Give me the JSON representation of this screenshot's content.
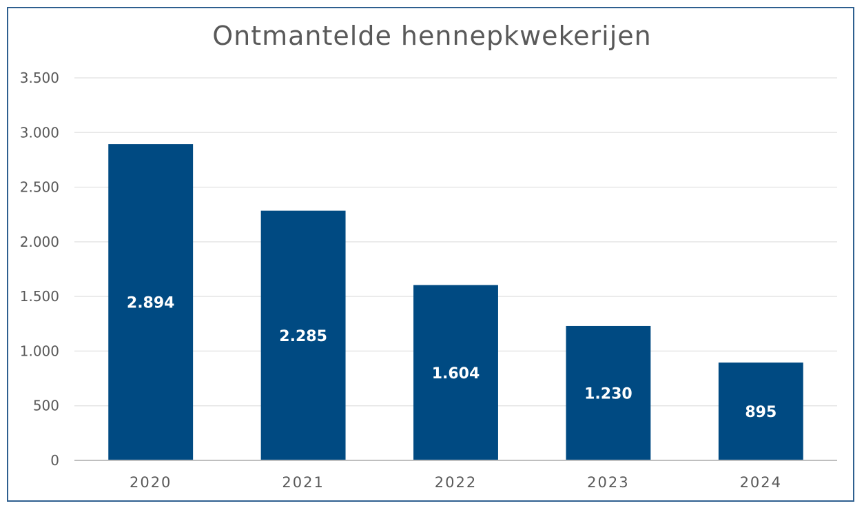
{
  "chart_data": {
    "type": "bar",
    "title": "Ontmantelde hennepkwekerijen",
    "categories": [
      "2020",
      "2021",
      "2022",
      "2023",
      "2024"
    ],
    "values": [
      2894,
      2285,
      1604,
      1230,
      895
    ],
    "data_labels": [
      "2.894",
      "2.285",
      "1.604",
      "1.230",
      "895"
    ],
    "yticks": [
      0,
      500,
      1000,
      1500,
      2000,
      2500,
      3000,
      3500
    ],
    "ytick_labels": [
      "0",
      "500",
      "1.000",
      "1.500",
      "2.000",
      "2.500",
      "3.000",
      "3.500"
    ],
    "ylim": [
      0,
      3500
    ],
    "grid": true,
    "legend": "none",
    "bar_color": "#004a82"
  },
  "colors": {
    "border": "#2e5f8f",
    "text": "#595959",
    "gridline": "#e6e6e6",
    "axis": "#bfbfbf"
  }
}
